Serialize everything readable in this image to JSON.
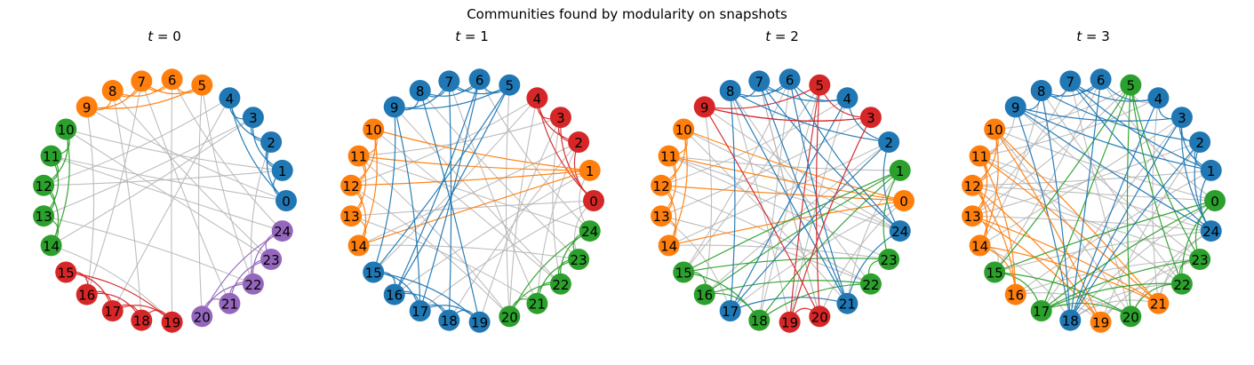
{
  "figure": {
    "title": "Communities found by modularity on snapshots"
  },
  "colors": {
    "blue": "#1f77b4",
    "orange": "#ff7f0e",
    "green": "#2ca02c",
    "red": "#d62728",
    "purple": "#9467bd",
    "gray": "#b3b3b3"
  },
  "panels": [
    {
      "title_var": "t",
      "title_eq": " = ",
      "title_val": "0",
      "communities": {
        "blue": [
          0,
          1,
          2,
          3,
          4
        ],
        "orange": [
          5,
          6,
          7,
          8,
          9
        ],
        "green": [
          10,
          11,
          12,
          13,
          14
        ],
        "red": [
          15,
          16,
          17,
          18,
          19
        ],
        "purple": [
          20,
          21,
          22,
          23,
          24
        ]
      },
      "edges": [
        [
          0,
          1
        ],
        [
          0,
          2
        ],
        [
          1,
          2
        ],
        [
          1,
          3
        ],
        [
          2,
          3
        ],
        [
          2,
          4
        ],
        [
          3,
          4
        ],
        [
          0,
          4
        ],
        [
          5,
          6
        ],
        [
          5,
          7
        ],
        [
          6,
          7
        ],
        [
          6,
          8
        ],
        [
          7,
          8
        ],
        [
          7,
          9
        ],
        [
          8,
          9
        ],
        [
          5,
          9
        ],
        [
          10,
          11
        ],
        [
          10,
          12
        ],
        [
          11,
          12
        ],
        [
          11,
          13
        ],
        [
          12,
          13
        ],
        [
          12,
          14
        ],
        [
          13,
          14
        ],
        [
          10,
          14
        ],
        [
          15,
          16
        ],
        [
          15,
          17
        ],
        [
          16,
          17
        ],
        [
          16,
          18
        ],
        [
          17,
          18
        ],
        [
          17,
          19
        ],
        [
          18,
          19
        ],
        [
          15,
          19
        ],
        [
          20,
          21
        ],
        [
          20,
          22
        ],
        [
          21,
          22
        ],
        [
          21,
          23
        ],
        [
          22,
          23
        ],
        [
          22,
          24
        ],
        [
          23,
          24
        ],
        [
          20,
          24
        ],
        [
          0,
          11
        ],
        [
          1,
          12
        ],
        [
          3,
          13
        ],
        [
          4,
          17
        ],
        [
          2,
          22
        ],
        [
          1,
          10
        ],
        [
          8,
          18
        ],
        [
          6,
          19
        ],
        [
          5,
          20
        ],
        [
          7,
          21
        ],
        [
          9,
          16
        ],
        [
          10,
          23
        ],
        [
          11,
          24
        ],
        [
          14,
          3
        ],
        [
          12,
          4
        ],
        [
          13,
          22
        ],
        [
          14,
          19
        ],
        [
          6,
          24
        ],
        [
          8,
          23
        ],
        [
          0,
          9
        ],
        [
          7,
          16
        ],
        [
          5,
          22
        ]
      ]
    },
    {
      "title_var": "t",
      "title_eq": " = ",
      "title_val": "1",
      "communities": {
        "blue": [
          5,
          6,
          7,
          8,
          9,
          15,
          16,
          17,
          18,
          19
        ],
        "orange": [
          1,
          10,
          11,
          12,
          13,
          14
        ],
        "green": [
          20,
          21,
          22,
          23,
          24
        ],
        "red": [
          0,
          2,
          3,
          4
        ]
      },
      "edges": [
        [
          5,
          6
        ],
        [
          5,
          7
        ],
        [
          6,
          7
        ],
        [
          6,
          8
        ],
        [
          7,
          8
        ],
        [
          7,
          9
        ],
        [
          8,
          9
        ],
        [
          5,
          9
        ],
        [
          15,
          16
        ],
        [
          15,
          17
        ],
        [
          16,
          17
        ],
        [
          16,
          18
        ],
        [
          17,
          18
        ],
        [
          17,
          19
        ],
        [
          18,
          19
        ],
        [
          15,
          19
        ],
        [
          10,
          11
        ],
        [
          10,
          12
        ],
        [
          11,
          12
        ],
        [
          11,
          13
        ],
        [
          12,
          13
        ],
        [
          12,
          14
        ],
        [
          13,
          14
        ],
        [
          10,
          14
        ],
        [
          20,
          21
        ],
        [
          20,
          22
        ],
        [
          21,
          22
        ],
        [
          21,
          23
        ],
        [
          22,
          23
        ],
        [
          22,
          24
        ],
        [
          23,
          24
        ],
        [
          20,
          24
        ],
        [
          0,
          2
        ],
        [
          0,
          3
        ],
        [
          2,
          3
        ],
        [
          2,
          4
        ],
        [
          3,
          4
        ],
        [
          0,
          4
        ],
        [
          1,
          10
        ],
        [
          1,
          12
        ],
        [
          1,
          14
        ],
        [
          1,
          11
        ],
        [
          9,
          15
        ],
        [
          8,
          19
        ],
        [
          7,
          18
        ],
        [
          6,
          16
        ],
        [
          5,
          15
        ],
        [
          9,
          17
        ],
        [
          6,
          17
        ],
        [
          5,
          16
        ],
        [
          0,
          13
        ],
        [
          2,
          14
        ],
        [
          3,
          11
        ],
        [
          4,
          12
        ],
        [
          2,
          21
        ],
        [
          3,
          22
        ],
        [
          0,
          23
        ],
        [
          4,
          20
        ],
        [
          1,
          24
        ],
        [
          10,
          22
        ],
        [
          11,
          20
        ],
        [
          13,
          21
        ],
        [
          6,
          24
        ],
        [
          8,
          23
        ],
        [
          7,
          21
        ],
        [
          9,
          22
        ],
        [
          5,
          20
        ],
        [
          18,
          2
        ],
        [
          19,
          3
        ],
        [
          16,
          1
        ],
        [
          15,
          4
        ],
        [
          12,
          20
        ],
        [
          14,
          23
        ],
        [
          11,
          24
        ],
        [
          0,
          17
        ]
      ]
    },
    {
      "title_var": "t",
      "title_eq": " = ",
      "title_val": "2",
      "communities": {
        "blue": [
          2,
          4,
          6,
          7,
          8,
          17,
          21,
          24
        ],
        "orange": [
          0,
          10,
          11,
          12,
          13,
          14
        ],
        "green": [
          1,
          15,
          16,
          18,
          22,
          23
        ],
        "red": [
          3,
          5,
          9,
          19,
          20
        ]
      },
      "edges": [
        [
          2,
          4
        ],
        [
          4,
          6
        ],
        [
          6,
          7
        ],
        [
          7,
          8
        ],
        [
          6,
          8
        ],
        [
          4,
          7
        ],
        [
          17,
          21
        ],
        [
          21,
          24
        ],
        [
          2,
          24
        ],
        [
          10,
          11
        ],
        [
          10,
          12
        ],
        [
          11,
          12
        ],
        [
          11,
          13
        ],
        [
          12,
          13
        ],
        [
          12,
          14
        ],
        [
          13,
          14
        ],
        [
          10,
          14
        ],
        [
          15,
          16
        ],
        [
          16,
          18
        ],
        [
          18,
          22
        ],
        [
          22,
          23
        ],
        [
          15,
          18
        ],
        [
          3,
          5
        ],
        [
          5,
          9
        ],
        [
          19,
          20
        ],
        [
          3,
          9
        ],
        [
          5,
          19
        ],
        [
          0,
          10
        ],
        [
          0,
          11
        ],
        [
          0,
          12
        ],
        [
          0,
          14
        ],
        [
          1,
          15
        ],
        [
          1,
          16
        ],
        [
          1,
          18
        ],
        [
          23,
          15
        ],
        [
          22,
          16
        ],
        [
          23,
          1
        ],
        [
          8,
          17
        ],
        [
          7,
          21
        ],
        [
          6,
          24
        ],
        [
          4,
          17
        ],
        [
          2,
          8
        ],
        [
          21,
          6
        ],
        [
          24,
          7
        ],
        [
          17,
          2
        ],
        [
          8,
          21
        ],
        [
          9,
          20
        ],
        [
          3,
          19
        ],
        [
          5,
          20
        ],
        [
          9,
          3
        ],
        [
          0,
          17
        ],
        [
          1,
          21
        ],
        [
          10,
          24
        ],
        [
          13,
          22
        ],
        [
          11,
          23
        ],
        [
          14,
          2
        ],
        [
          12,
          4
        ],
        [
          15,
          6
        ],
        [
          16,
          9
        ],
        [
          18,
          5
        ],
        [
          19,
          8
        ],
        [
          20,
          7
        ],
        [
          21,
          10
        ],
        [
          22,
          12
        ],
        [
          23,
          14
        ],
        [
          24,
          11
        ],
        [
          3,
          13
        ],
        [
          5,
          15
        ],
        [
          6,
          18
        ],
        [
          7,
          20
        ],
        [
          8,
          22
        ],
        [
          9,
          24
        ],
        [
          2,
          16
        ],
        [
          4,
          19
        ],
        [
          0,
          20
        ],
        [
          1,
          11
        ],
        [
          13,
          17
        ]
      ]
    },
    {
      "title_var": "t",
      "title_eq": " = ",
      "title_val": "3",
      "communities": {
        "blue": [
          1,
          2,
          3,
          4,
          6,
          7,
          8,
          9,
          18,
          24
        ],
        "orange": [
          10,
          11,
          12,
          13,
          14,
          16,
          19,
          21
        ],
        "green": [
          0,
          5,
          15,
          17,
          20,
          22,
          23
        ]
      },
      "edges": [
        [
          1,
          2
        ],
        [
          2,
          3
        ],
        [
          3,
          4
        ],
        [
          4,
          6
        ],
        [
          6,
          7
        ],
        [
          7,
          8
        ],
        [
          8,
          9
        ],
        [
          1,
          3
        ],
        [
          4,
          7
        ],
        [
          6,
          8
        ],
        [
          2,
          24
        ],
        [
          1,
          24
        ],
        [
          9,
          18
        ],
        [
          3,
          24
        ],
        [
          10,
          11
        ],
        [
          10,
          12
        ],
        [
          11,
          12
        ],
        [
          11,
          13
        ],
        [
          12,
          13
        ],
        [
          12,
          14
        ],
        [
          13,
          14
        ],
        [
          10,
          14
        ],
        [
          15,
          17
        ],
        [
          17,
          20
        ],
        [
          20,
          22
        ],
        [
          22,
          23
        ],
        [
          15,
          20
        ],
        [
          0,
          23
        ],
        [
          5,
          22
        ],
        [
          10,
          19
        ],
        [
          11,
          21
        ],
        [
          12,
          16
        ],
        [
          13,
          19
        ],
        [
          14,
          21
        ],
        [
          11,
          16
        ],
        [
          13,
          21
        ],
        [
          10,
          21
        ],
        [
          12,
          19
        ],
        [
          14,
          16
        ],
        [
          5,
          15
        ],
        [
          5,
          17
        ],
        [
          0,
          15
        ],
        [
          0,
          17
        ],
        [
          5,
          20
        ],
        [
          0,
          22
        ],
        [
          23,
          17
        ],
        [
          5,
          23
        ],
        [
          6,
          18
        ],
        [
          7,
          24
        ],
        [
          8,
          18
        ],
        [
          9,
          24
        ],
        [
          2,
          18
        ],
        [
          4,
          18
        ],
        [
          1,
          9
        ],
        [
          3,
          18
        ],
        [
          0,
          10
        ],
        [
          1,
          12
        ],
        [
          2,
          13
        ],
        [
          3,
          14
        ],
        [
          4,
          11
        ],
        [
          5,
          10
        ],
        [
          6,
          12
        ],
        [
          7,
          13
        ],
        [
          8,
          14
        ],
        [
          9,
          11
        ],
        [
          15,
          24
        ],
        [
          16,
          23
        ],
        [
          17,
          22
        ],
        [
          18,
          21
        ],
        [
          19,
          20
        ],
        [
          20,
          24
        ],
        [
          21,
          23
        ],
        [
          22,
          18
        ],
        [
          23,
          19
        ],
        [
          0,
          6
        ],
        [
          1,
          7
        ],
        [
          2,
          8
        ],
        [
          3,
          9
        ],
        [
          4,
          5
        ],
        [
          10,
          20
        ],
        [
          11,
          22
        ],
        [
          12,
          23
        ],
        [
          13,
          24
        ],
        [
          14,
          15
        ],
        [
          16,
          1
        ],
        [
          19,
          2
        ],
        [
          21,
          4
        ],
        [
          18,
          0
        ],
        [
          17,
          3
        ],
        [
          15,
          6
        ],
        [
          20,
          7
        ],
        [
          22,
          8
        ],
        [
          23,
          9
        ],
        [
          24,
          11
        ],
        [
          0,
          12
        ],
        [
          5,
          13
        ],
        [
          14,
          18
        ],
        [
          16,
          20
        ],
        [
          21,
          24
        ],
        [
          19,
          17
        ]
      ]
    }
  ]
}
